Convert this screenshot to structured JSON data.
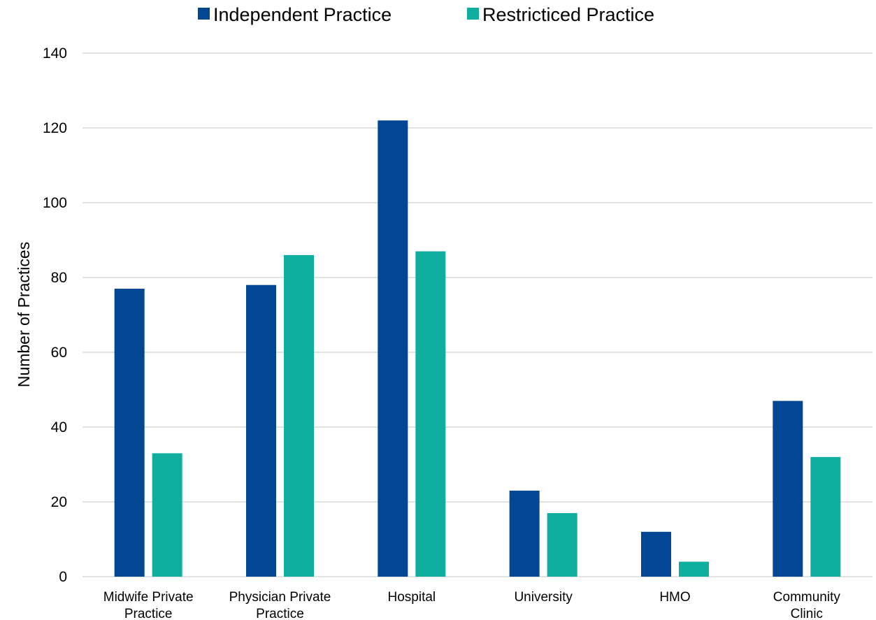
{
  "chart_data": {
    "type": "bar",
    "title": "",
    "xlabel": "",
    "ylabel": "Number of Practices",
    "ylim": [
      0,
      140
    ],
    "yticks": [
      0,
      20,
      40,
      60,
      80,
      100,
      120,
      140
    ],
    "grid": true,
    "legend_position": "top-center",
    "categories": [
      [
        "Midwife Private",
        "Practice"
      ],
      [
        "Physician Private",
        "Practice"
      ],
      [
        "Hospital"
      ],
      [
        "University"
      ],
      [
        "HMO"
      ],
      [
        "Community",
        "Clinic"
      ]
    ],
    "series": [
      {
        "name": "Independent Practice",
        "color": "#034694",
        "values": [
          77,
          78,
          122,
          23,
          12,
          47
        ]
      },
      {
        "name": "Restricticed Practice",
        "color": "#0fae9e",
        "values": [
          33,
          86,
          87,
          17,
          4,
          32
        ]
      }
    ]
  }
}
